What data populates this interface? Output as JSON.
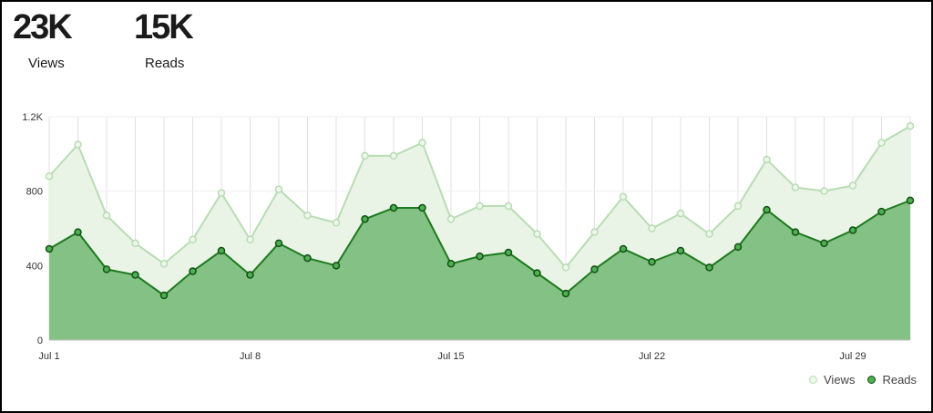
{
  "stats": {
    "views_value": "23K",
    "views_label": "Views",
    "reads_value": "15K",
    "reads_label": "Reads"
  },
  "colors": {
    "views_line": "#b8dcb3",
    "views_fill": "#e9f4e7",
    "reads_line": "#1e7a1e",
    "reads_fill": "#84c184",
    "grid": "#e0e0e0",
    "views_point_fill": "#eef7ec",
    "reads_point_fill": "#4caf50"
  },
  "chart_data": {
    "type": "area",
    "x": [
      "Jul 1",
      "Jul 2",
      "Jul 3",
      "Jul 4",
      "Jul 5",
      "Jul 6",
      "Jul 7",
      "Jul 8",
      "Jul 9",
      "Jul 10",
      "Jul 11",
      "Jul 12",
      "Jul 13",
      "Jul 14",
      "Jul 15",
      "Jul 16",
      "Jul 17",
      "Jul 18",
      "Jul 19",
      "Jul 20",
      "Jul 21",
      "Jul 22",
      "Jul 23",
      "Jul 24",
      "Jul 25",
      "Jul 26",
      "Jul 27",
      "Jul 28",
      "Jul 29",
      "Jul 30",
      "Jul 31"
    ],
    "x_tick_labels": [
      "Jul 1",
      "Jul 8",
      "Jul 15",
      "Jul 22",
      "Jul 29"
    ],
    "y_tick_labels": [
      "0",
      "400",
      "800",
      "1.2K"
    ],
    "y_ticks": [
      0,
      400,
      800,
      1200
    ],
    "ylim": [
      0,
      1200
    ],
    "grid": true,
    "legend_position": "bottom-right",
    "series": [
      {
        "name": "Views",
        "values": [
          880,
          1050,
          670,
          520,
          410,
          540,
          790,
          540,
          810,
          670,
          630,
          990,
          990,
          1060,
          650,
          720,
          720,
          570,
          390,
          580,
          770,
          600,
          680,
          570,
          720,
          970,
          820,
          800,
          830,
          1060,
          1150
        ]
      },
      {
        "name": "Reads",
        "values": [
          490,
          580,
          380,
          350,
          240,
          370,
          480,
          350,
          520,
          440,
          400,
          650,
          710,
          710,
          410,
          450,
          470,
          360,
          250,
          380,
          490,
          420,
          480,
          390,
          500,
          700,
          580,
          520,
          590,
          690,
          750
        ]
      }
    ]
  }
}
